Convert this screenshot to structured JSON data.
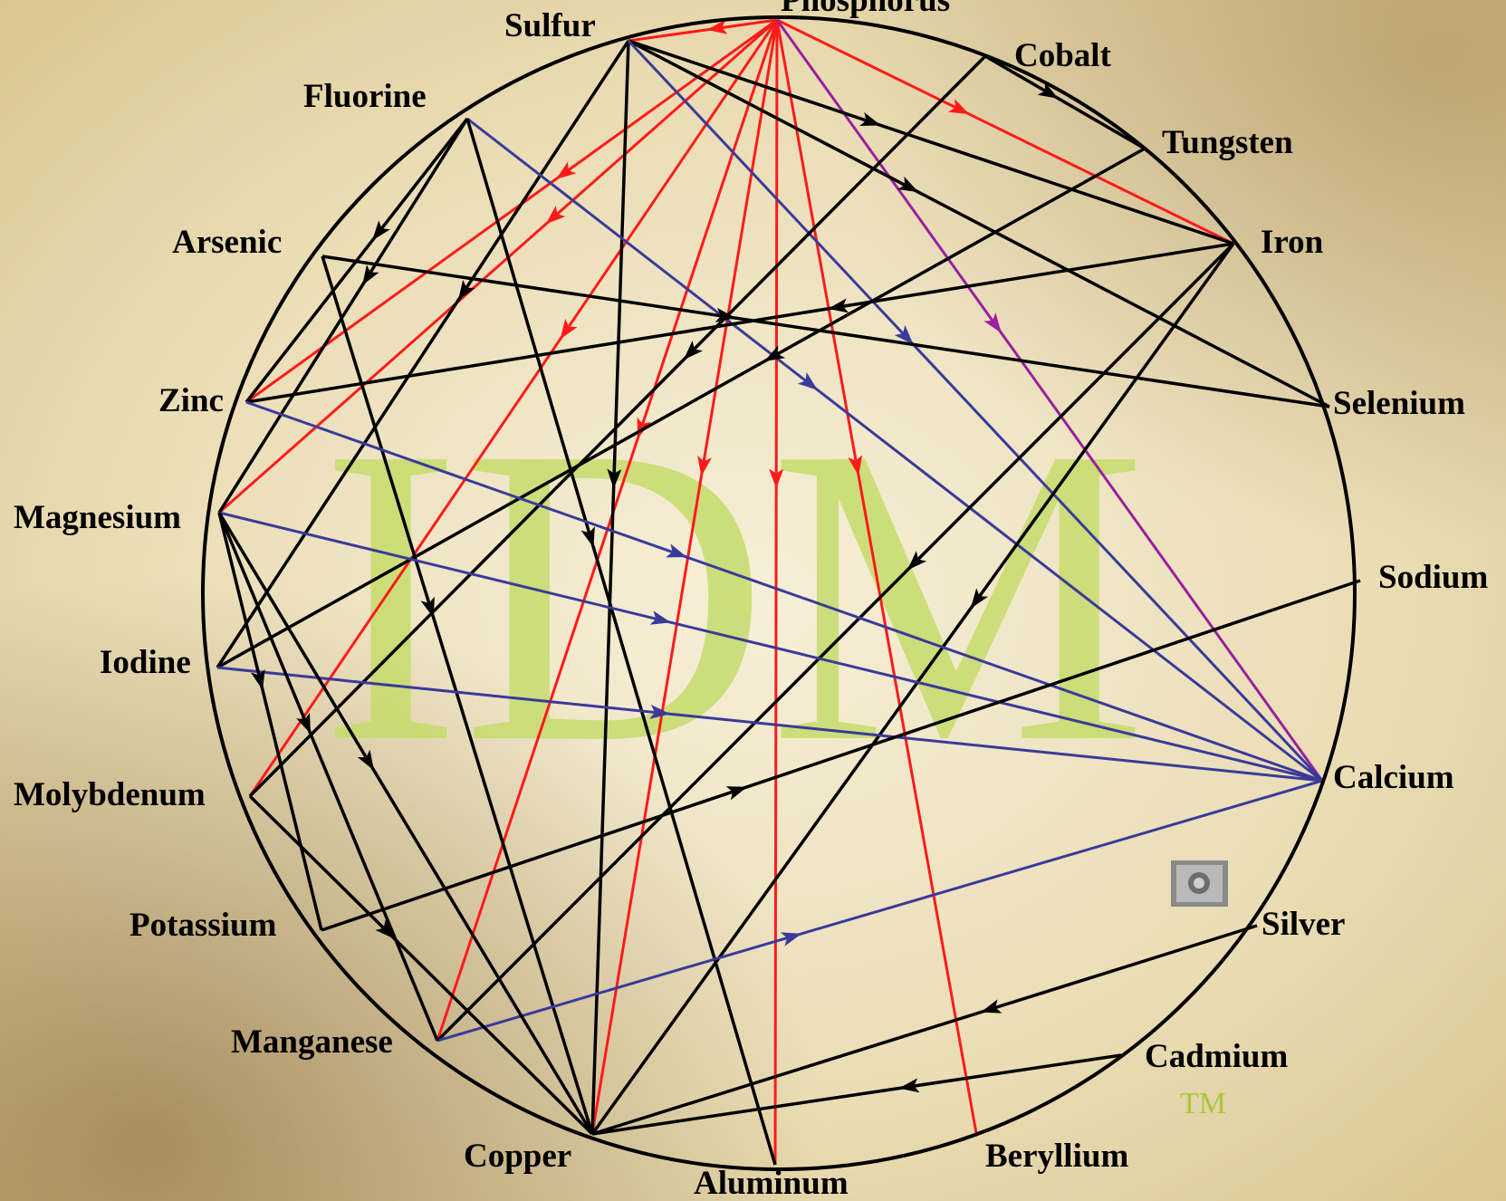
{
  "watermark": {
    "text": "IDM",
    "trademark": "TM",
    "color": "#c6dc6c"
  },
  "colors": {
    "black": "#000000",
    "red": "#ff1a1a",
    "blue": "#3a3a9a",
    "purple": "#9a1fa0"
  },
  "elements": [
    "Phosphorus",
    "Cobalt",
    "Tungsten",
    "Iron",
    "Selenium",
    "Sodium",
    "Calcium",
    "Silver",
    "Cadmium",
    "Beryllium",
    "Aluminum",
    "Copper",
    "Manganese",
    "Potassium",
    "Molybdenum",
    "Iodine",
    "Magnesium",
    "Zinc",
    "Arsenic",
    "Fluorine",
    "Sulfur"
  ],
  "relationships": [
    {
      "from": "Phosphorus",
      "to": "Sulfur",
      "color": "red"
    },
    {
      "from": "Phosphorus",
      "to": "Zinc",
      "color": "red"
    },
    {
      "from": "Phosphorus",
      "to": "Magnesium",
      "color": "red"
    },
    {
      "from": "Phosphorus",
      "to": "Molybdenum",
      "color": "red"
    },
    {
      "from": "Phosphorus",
      "to": "Manganese",
      "color": "red"
    },
    {
      "from": "Phosphorus",
      "to": "Copper",
      "color": "red"
    },
    {
      "from": "Phosphorus",
      "to": "Aluminum",
      "color": "red"
    },
    {
      "from": "Phosphorus",
      "to": "Beryllium",
      "color": "red"
    },
    {
      "from": "Phosphorus",
      "to": "Iron",
      "color": "red"
    },
    {
      "from": "Phosphorus",
      "to": "Calcium",
      "color": "purple"
    },
    {
      "from": "Sulfur",
      "to": "Iron",
      "color": "black"
    },
    {
      "from": "Sulfur",
      "to": "Selenium",
      "color": "black"
    },
    {
      "from": "Sulfur",
      "to": "Copper",
      "color": "black"
    },
    {
      "from": "Sulfur",
      "to": "Iodine",
      "color": "black"
    },
    {
      "from": "Sulfur",
      "to": "Calcium",
      "color": "blue"
    },
    {
      "from": "Fluorine",
      "to": "Calcium",
      "color": "blue"
    },
    {
      "from": "Fluorine",
      "to": "Zinc",
      "color": "black"
    },
    {
      "from": "Fluorine",
      "to": "Magnesium",
      "color": "black"
    },
    {
      "from": "Fluorine",
      "to": "Aluminum",
      "color": "black"
    },
    {
      "from": "Cobalt",
      "to": "Tungsten",
      "color": "black"
    },
    {
      "from": "Cobalt",
      "to": "Molybdenum",
      "color": "black"
    },
    {
      "from": "Tungsten",
      "to": "Iodine",
      "color": "black"
    },
    {
      "from": "Iron",
      "to": "Zinc",
      "color": "black"
    },
    {
      "from": "Iron",
      "to": "Manganese",
      "color": "black"
    },
    {
      "from": "Iron",
      "to": "Copper",
      "color": "black"
    },
    {
      "from": "Arsenic",
      "to": "Selenium",
      "color": "black"
    },
    {
      "from": "Arsenic",
      "to": "Copper",
      "color": "black"
    },
    {
      "from": "Zinc",
      "to": "Calcium",
      "color": "blue"
    },
    {
      "from": "Magnesium",
      "to": "Calcium",
      "color": "blue"
    },
    {
      "from": "Iodine",
      "to": "Calcium",
      "color": "blue"
    },
    {
      "from": "Manganese",
      "to": "Calcium",
      "color": "blue"
    },
    {
      "from": "Magnesium",
      "to": "Manganese",
      "color": "black"
    },
    {
      "from": "Magnesium",
      "to": "Potassium",
      "color": "black"
    },
    {
      "from": "Magnesium",
      "to": "Copper",
      "color": "black"
    },
    {
      "from": "Molybdenum",
      "to": "Copper",
      "color": "black"
    },
    {
      "from": "Potassium",
      "to": "Sodium",
      "color": "black"
    },
    {
      "from": "Silver",
      "to": "Copper",
      "color": "black"
    },
    {
      "from": "Cadmium",
      "to": "Copper",
      "color": "black"
    }
  ]
}
